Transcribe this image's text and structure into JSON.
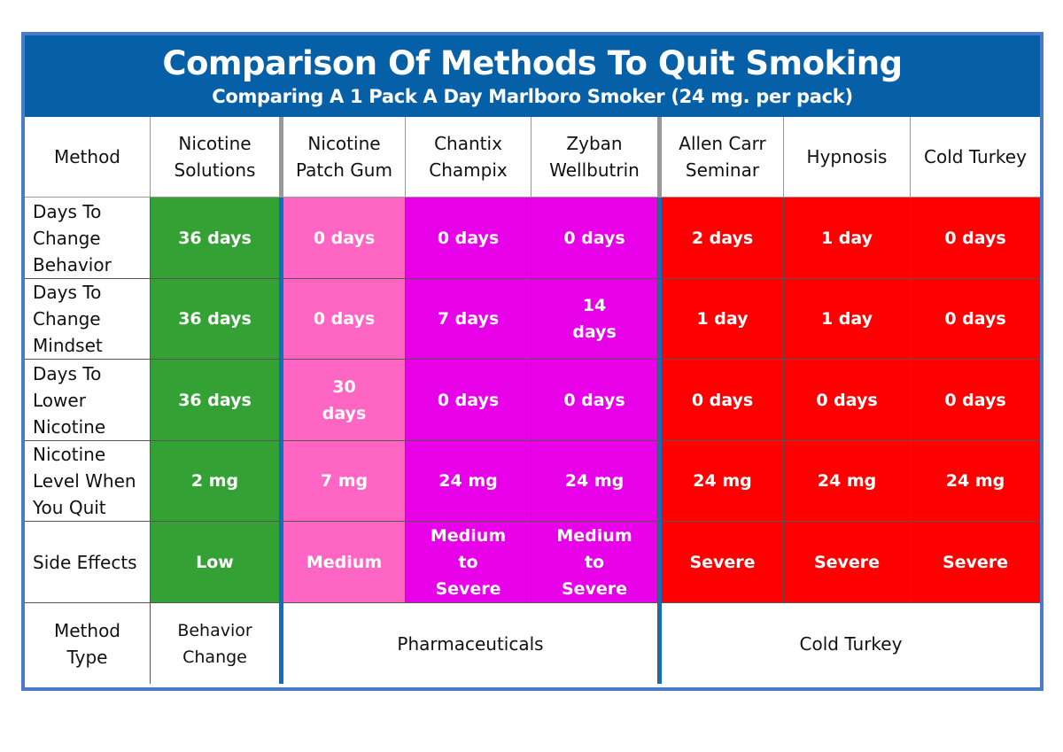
{
  "title": "Comparison Of Methods To Quit Smoking",
  "subtitle": "Comparing A 1 Pack A Day Marlboro Smoker (24 mg. per pack)",
  "colors": {
    "header_bg": "#0560a8",
    "frame": "#4a7bc8",
    "separator": "#0b6fc6",
    "behavior": "#33a133",
    "patch_gum": "#ff66c4",
    "pharma": "#e800e8",
    "cold_turkey": "#ff0000"
  },
  "corner_label": "Method",
  "methods": [
    "Nicotine Solutions",
    "Nicotine Patch Gum",
    "Chantix Champix",
    "Zyban Wellbutrin",
    "Allen Carr Seminar",
    "Hypnosis",
    "Cold Turkey"
  ],
  "method_colors": [
    "#33a133",
    "#ff66c4",
    "#e800e8",
    "#e800e8",
    "#ff0000",
    "#ff0000",
    "#ff0000"
  ],
  "rows": [
    {
      "label": "Days  To Change Behavior",
      "cells": [
        "36 days",
        "0 days",
        "0 days",
        "0 days",
        "2 days",
        "1 day",
        "0 days"
      ]
    },
    {
      "label": "Days To Change Mindset",
      "cells": [
        "36 days",
        "0 days",
        "7 days",
        "14 days",
        "1 day",
        "1 day",
        "0 days"
      ]
    },
    {
      "label": "Days To Lower Nicotine",
      "cells": [
        "36 days",
        "30 days",
        "0 days",
        "0 days",
        "0 days",
        "0 days",
        "0 days"
      ]
    },
    {
      "label": "Nicotine Level When You Quit",
      "cells": [
        "2 mg",
        "7 mg",
        "24 mg",
        "24 mg",
        "24 mg",
        "24 mg",
        "24 mg"
      ]
    },
    {
      "label": "Side Effects",
      "cells": [
        "Low",
        "Medium",
        "Medium to Severe",
        "Medium to Severe",
        "Severe",
        "Severe",
        "Severe"
      ]
    }
  ],
  "method_type": {
    "label": "Method Type",
    "groups": [
      "Behavior Change",
      "Pharmaceuticals",
      "Cold Turkey"
    ]
  }
}
